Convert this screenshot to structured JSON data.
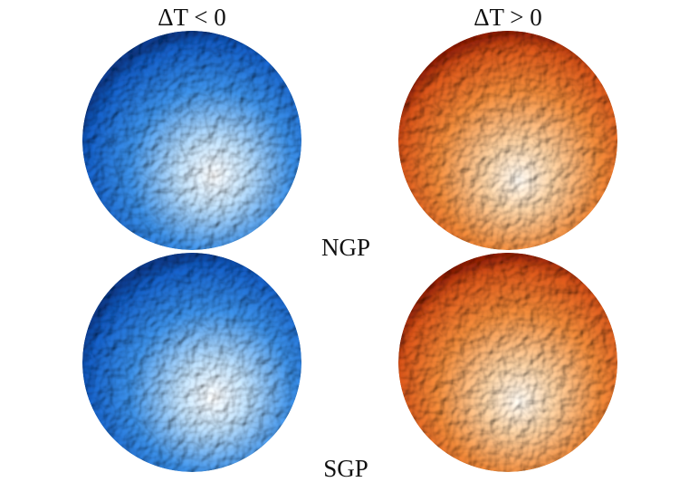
{
  "columns": [
    "ΔT < 0",
    "ΔT > 0"
  ],
  "rows": [
    "NGP",
    "SGP"
  ]
}
